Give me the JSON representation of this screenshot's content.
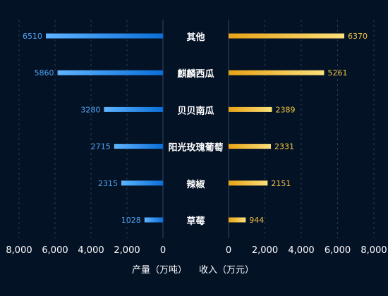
{
  "chart_data": {
    "type": "bar",
    "orientation": "horizontal-butterfly",
    "categories": [
      "其他",
      "麒麟西瓜",
      "贝贝南瓜",
      "阳光玫瑰葡萄",
      "辣椒",
      "草莓"
    ],
    "series": [
      {
        "name": "产量（万吨）",
        "side": "left",
        "values": [
          6510,
          5860,
          3280,
          2715,
          2315,
          1028
        ]
      },
      {
        "name": "收入（万元）",
        "side": "right",
        "values": [
          6370,
          5261,
          2389,
          2331,
          2151,
          944
        ]
      }
    ],
    "left_axis": {
      "title": "产量（万吨）",
      "range": [
        0,
        8000
      ],
      "ticks": [
        "8,000",
        "6,000",
        "4,000",
        "2,000",
        "0"
      ],
      "tick_values": [
        8000,
        6000,
        4000,
        2000,
        0
      ]
    },
    "right_axis": {
      "title": "收入（万元）",
      "range": [
        0,
        8000
      ],
      "ticks": [
        "0",
        "2,000",
        "4,000",
        "6,000",
        "8,000"
      ],
      "tick_values": [
        0,
        2000,
        4000,
        6000,
        8000
      ]
    },
    "grid": true,
    "colors": {
      "left_dark": "#0a6fd8",
      "left_light": "#5fb4ff",
      "right_dark": "#e8a317",
      "right_light": "#fbe07a",
      "background": "#041226"
    }
  }
}
